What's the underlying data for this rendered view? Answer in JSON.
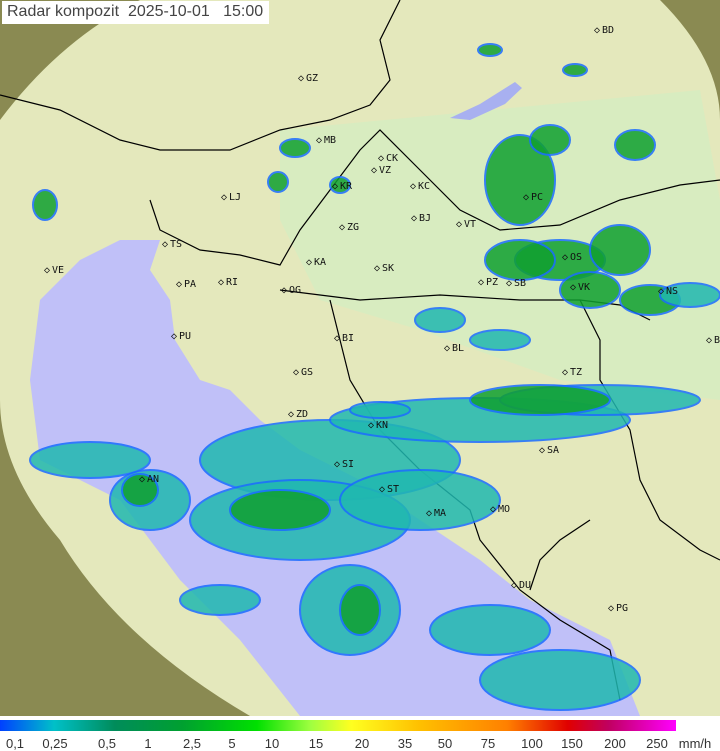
{
  "header": {
    "title": "Radar kompozit",
    "date": "2025-10-01",
    "time": "15:00"
  },
  "cities": [
    "BD",
    "GZ",
    "MB",
    "CK",
    "VZ",
    "KR",
    "KC",
    "LJ",
    "ZG",
    "BJ",
    "VT",
    "TS",
    "VE",
    "RI",
    "KA",
    "SK",
    "PA",
    "OG",
    "PZ",
    "SB",
    "PC",
    "OS",
    "VK",
    "NS",
    "BG",
    "PU",
    "BI",
    "BL",
    "GS",
    "TZ",
    "ZD",
    "KN",
    "SI",
    "SA",
    "AN",
    "ST",
    "MA",
    "MO",
    "DU",
    "PG"
  ],
  "legend": {
    "ticks": [
      "0,1",
      "0,25",
      "0,5",
      "1",
      "2,5",
      "5",
      "10",
      "15",
      "20",
      "35",
      "50",
      "75",
      "100",
      "150",
      "200",
      "250"
    ],
    "unit": "mm/h"
  },
  "colors": {
    "sea": "#c0c0f8",
    "land": "#e6efc4",
    "outside": "#8a8a50",
    "rain_light": "#1a6cff",
    "rain_mid": "#20b8b0",
    "rain_heavy": "#10a030"
  }
}
